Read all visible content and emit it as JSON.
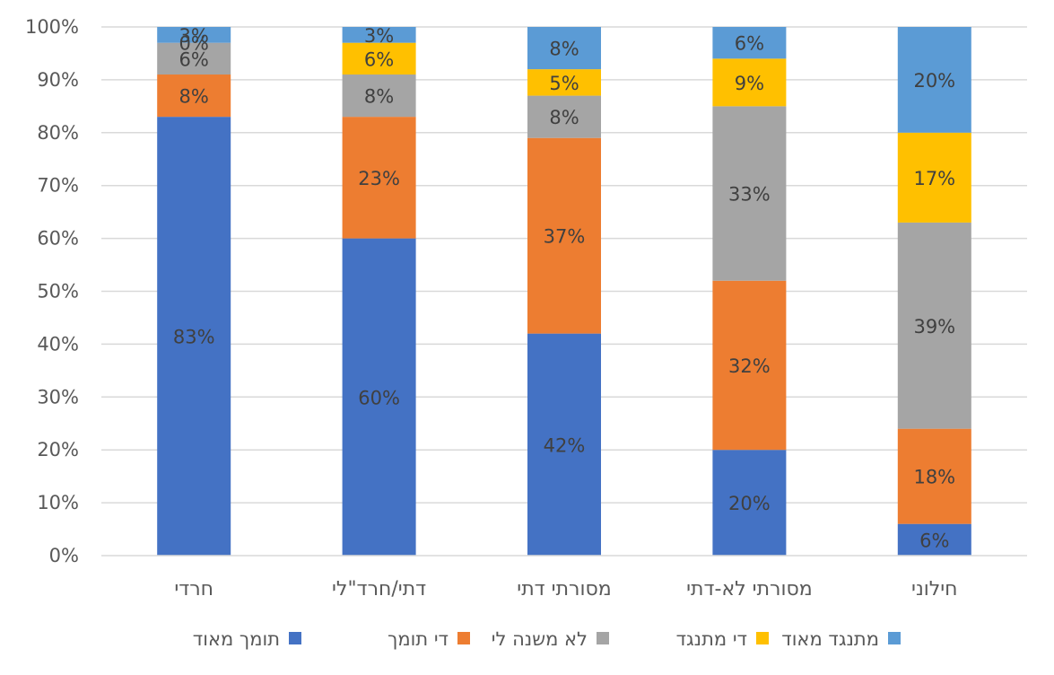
{
  "chart_data": {
    "type": "bar",
    "stacked": "percent",
    "categories": [
      "חרדי",
      "דתי/חרד\"לי",
      "מסורתי דתי",
      "מסורתי לא-דתי",
      "חילוני"
    ],
    "series": [
      {
        "name": "תומך מאוד",
        "color": "#4472C4",
        "values": [
          83,
          60,
          42,
          20,
          6
        ],
        "labels": [
          "83%",
          "60%",
          "42%",
          "20%",
          "6%"
        ]
      },
      {
        "name": "די תומך",
        "color": "#ED7D31",
        "values": [
          8,
          23,
          37,
          32,
          18
        ],
        "labels": [
          "8%",
          "23%",
          "37%",
          "32%",
          "18%"
        ]
      },
      {
        "name": "לא משנה לי",
        "color": "#A5A5A5",
        "values": [
          6,
          8,
          8,
          33,
          39
        ],
        "labels": [
          "6%",
          "8%",
          "8%",
          "33%",
          "39%"
        ]
      },
      {
        "name": "די מתנגד",
        "color": "#FFC000",
        "values": [
          0,
          6,
          5,
          9,
          17
        ],
        "labels": [
          "0%",
          "6%",
          "5%",
          "9%",
          "17%"
        ]
      },
      {
        "name": "מתנגד מאוד",
        "color": "#5B9BD5",
        "values": [
          3,
          3,
          8,
          6,
          20
        ],
        "labels": [
          "3%",
          "3%",
          "8%",
          "6%",
          "20%"
        ]
      }
    ],
    "yticks": [
      "0%",
      "10%",
      "20%",
      "30%",
      "40%",
      "50%",
      "60%",
      "70%",
      "80%",
      "90%",
      "100%"
    ],
    "ylim": [
      0,
      100
    ],
    "grid": true,
    "legend_position": "bottom",
    "title": "",
    "xlabel": "",
    "ylabel": ""
  }
}
